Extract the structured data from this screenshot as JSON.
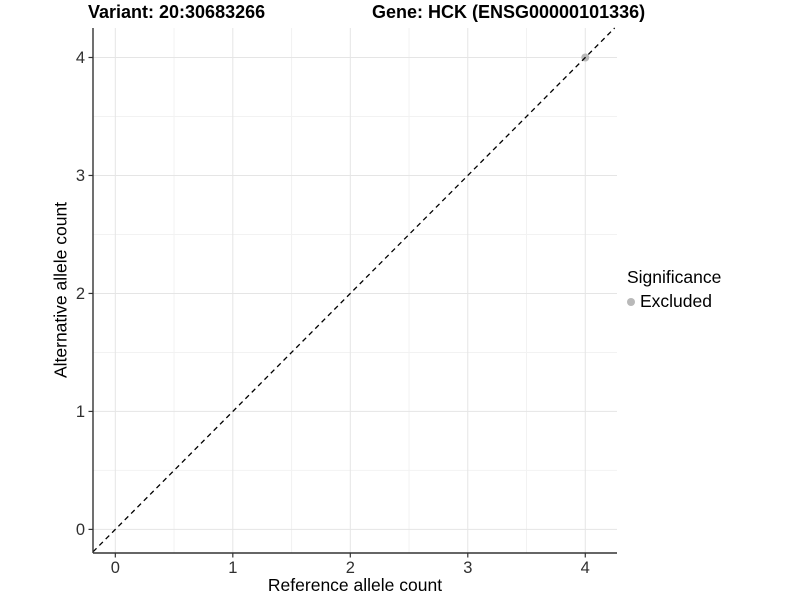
{
  "chart_data": {
    "type": "scatter",
    "title_left": "Variant: 20:30683266",
    "title_right": "Gene: HCK (ENSG00000101336)",
    "xlabel": "Reference allele count",
    "ylabel": "Alternative allele count",
    "xlim": [
      -0.19,
      4.27
    ],
    "ylim": [
      -0.2,
      4.25
    ],
    "x_ticks": [
      0,
      1,
      2,
      3,
      4
    ],
    "y_ticks": [
      0,
      1,
      2,
      3,
      4
    ],
    "x_minor_ticks": [
      0.5,
      1.5,
      2.5,
      3.5
    ],
    "y_minor_ticks": [
      0.5,
      1.5,
      2.5,
      3.5
    ],
    "grid": true,
    "identity_line": {
      "slope": 1,
      "intercept": 0,
      "style": "dashed",
      "color": "#000000"
    },
    "series": [
      {
        "name": "Excluded",
        "color": "#b9b9b9",
        "points": [
          {
            "x": 4,
            "y": 4
          }
        ]
      }
    ],
    "legend": {
      "title": "Significance",
      "position": "right",
      "items": [
        {
          "label": "Excluded",
          "color": "#b9b9b9"
        }
      ]
    },
    "colors": {
      "background": "#ffffff",
      "grid_major": "#e5e5e5",
      "grid_minor": "#f2f2f2",
      "axis_line": "#333333",
      "tick_label": "#303030"
    }
  }
}
